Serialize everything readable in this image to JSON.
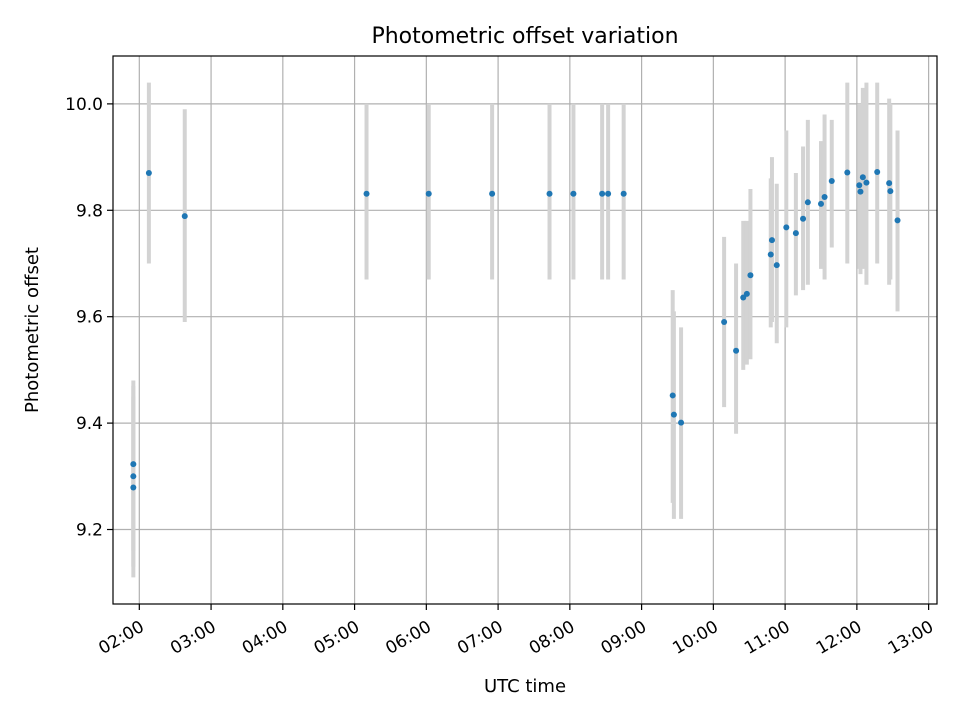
{
  "chart_data": {
    "type": "scatter",
    "title": "Photometric offset variation",
    "xlabel": "UTC time",
    "ylabel": "Photometric offset",
    "x_unit": "hours UTC",
    "xlim": [
      "01:38",
      "13:07"
    ],
    "ylim": [
      9.06,
      10.09
    ],
    "x_ticks": [
      "02:00",
      "03:00",
      "04:00",
      "05:00",
      "06:00",
      "07:00",
      "08:00",
      "09:00",
      "10:00",
      "11:00",
      "12:00",
      "13:00"
    ],
    "y_ticks": [
      "9.2",
      "9.4",
      "9.6",
      "9.8",
      "10.0"
    ],
    "grid": true,
    "colors": {
      "points": "#1f77b4",
      "errorbars": "#d3d3d3",
      "grid": "#b0b0b0"
    },
    "points": [
      {
        "time": "01:55",
        "y": 9.323,
        "lo": 9.16,
        "hi": 9.48
      },
      {
        "time": "01:55",
        "y": 9.3,
        "lo": 9.13,
        "hi": 9.47
      },
      {
        "time": "01:55",
        "y": 9.279,
        "lo": 9.11,
        "hi": 9.45
      },
      {
        "time": "02:08",
        "y": 9.87,
        "lo": 9.7,
        "hi": 10.04
      },
      {
        "time": "02:38",
        "y": 9.789,
        "lo": 9.59,
        "hi": 9.99
      },
      {
        "time": "05:10",
        "y": 9.831,
        "lo": 9.67,
        "hi": 10.0
      },
      {
        "time": "06:02",
        "y": 9.831,
        "lo": 9.67,
        "hi": 10.0
      },
      {
        "time": "06:55",
        "y": 9.831,
        "lo": 9.67,
        "hi": 10.0
      },
      {
        "time": "07:43",
        "y": 9.831,
        "lo": 9.67,
        "hi": 10.0
      },
      {
        "time": "08:03",
        "y": 9.831,
        "lo": 9.67,
        "hi": 10.0
      },
      {
        "time": "08:27",
        "y": 9.831,
        "lo": 9.67,
        "hi": 10.0
      },
      {
        "time": "08:32",
        "y": 9.831,
        "lo": 9.67,
        "hi": 10.0
      },
      {
        "time": "08:45",
        "y": 9.831,
        "lo": 9.67,
        "hi": 10.0
      },
      {
        "time": "09:26",
        "y": 9.452,
        "lo": 9.25,
        "hi": 9.65
      },
      {
        "time": "09:27",
        "y": 9.416,
        "lo": 9.22,
        "hi": 9.61
      },
      {
        "time": "09:33",
        "y": 9.401,
        "lo": 9.22,
        "hi": 9.58
      },
      {
        "time": "10:09",
        "y": 9.59,
        "lo": 9.43,
        "hi": 9.75
      },
      {
        "time": "10:19",
        "y": 9.536,
        "lo": 9.38,
        "hi": 9.7
      },
      {
        "time": "10:25",
        "y": 9.636,
        "lo": 9.5,
        "hi": 9.78
      },
      {
        "time": "10:28",
        "y": 9.643,
        "lo": 9.51,
        "hi": 9.78
      },
      {
        "time": "10:31",
        "y": 9.678,
        "lo": 9.52,
        "hi": 9.84
      },
      {
        "time": "10:48",
        "y": 9.717,
        "lo": 9.58,
        "hi": 9.86
      },
      {
        "time": "10:49",
        "y": 9.744,
        "lo": 9.59,
        "hi": 9.9
      },
      {
        "time": "10:53",
        "y": 9.697,
        "lo": 9.55,
        "hi": 9.85
      },
      {
        "time": "11:01",
        "y": 9.768,
        "lo": 9.58,
        "hi": 9.95
      },
      {
        "time": "11:09",
        "y": 9.757,
        "lo": 9.64,
        "hi": 9.87
      },
      {
        "time": "11:15",
        "y": 9.784,
        "lo": 9.65,
        "hi": 9.92
      },
      {
        "time": "11:19",
        "y": 9.815,
        "lo": 9.66,
        "hi": 9.97
      },
      {
        "time": "11:30",
        "y": 9.812,
        "lo": 9.69,
        "hi": 9.93
      },
      {
        "time": "11:33",
        "y": 9.825,
        "lo": 9.67,
        "hi": 9.98
      },
      {
        "time": "11:39",
        "y": 9.855,
        "lo": 9.73,
        "hi": 9.97
      },
      {
        "time": "11:52",
        "y": 9.871,
        "lo": 9.7,
        "hi": 10.04
      },
      {
        "time": "12:02",
        "y": 9.847,
        "lo": 9.69,
        "hi": 10.0
      },
      {
        "time": "12:03",
        "y": 9.835,
        "lo": 9.68,
        "hi": 10.0
      },
      {
        "time": "12:05",
        "y": 9.862,
        "lo": 9.69,
        "hi": 10.03
      },
      {
        "time": "12:08",
        "y": 9.852,
        "lo": 9.66,
        "hi": 10.04
      },
      {
        "time": "12:17",
        "y": 9.872,
        "lo": 9.7,
        "hi": 10.04
      },
      {
        "time": "12:27",
        "y": 9.851,
        "lo": 9.66,
        "hi": 10.01
      },
      {
        "time": "12:28",
        "y": 9.836,
        "lo": 9.67,
        "hi": 10.0
      },
      {
        "time": "12:34",
        "y": 9.781,
        "lo": 9.61,
        "hi": 9.95
      }
    ]
  }
}
